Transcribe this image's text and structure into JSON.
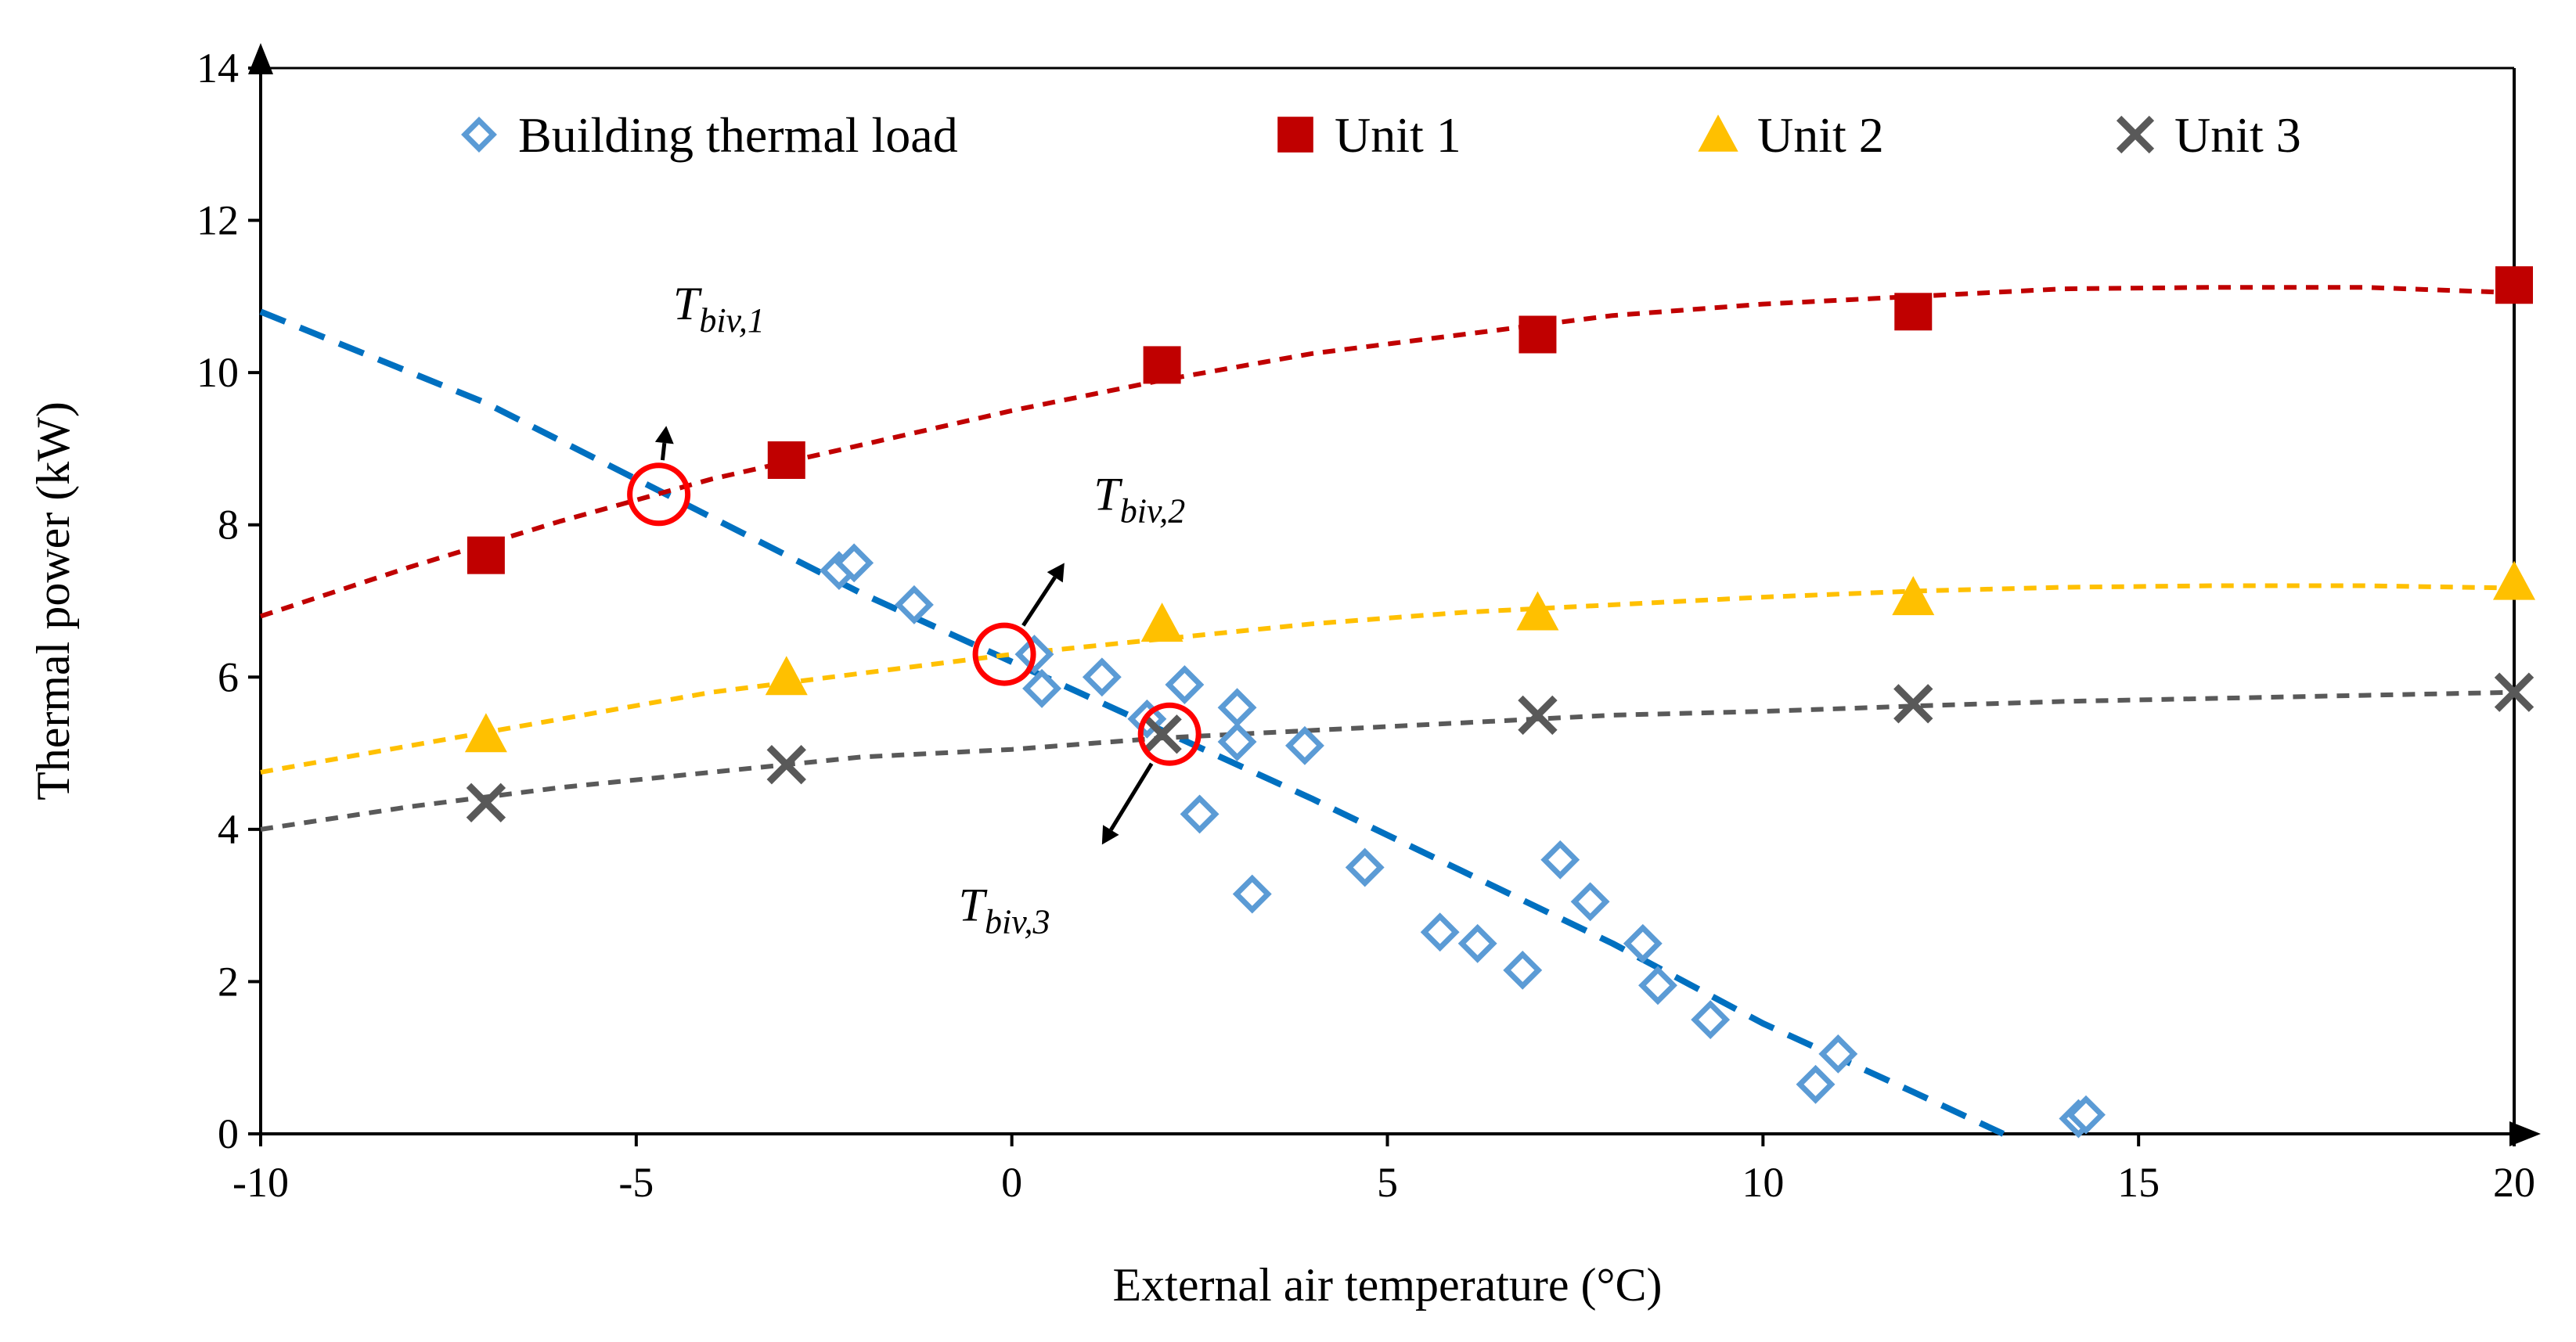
{
  "chart_data": {
    "type": "scatter",
    "xlabel": "External air temperature (°C)",
    "ylabel": "Thermal power (kW)",
    "xlim": [
      -10,
      20
    ],
    "ylim": [
      0,
      14
    ],
    "x_ticks": [
      "-10",
      "-5",
      "0",
      "5",
      "10",
      "15",
      "20"
    ],
    "y_ticks": [
      "0",
      "2",
      "4",
      "6",
      "8",
      "10",
      "12",
      "14"
    ],
    "grid": false,
    "legend_position": "top",
    "series": [
      {
        "name": "Building thermal load",
        "marker": "diamond-open",
        "color": "#5B9BD5",
        "points": [
          [
            -2.3,
            7.4
          ],
          [
            -2.1,
            7.5
          ],
          [
            -1.3,
            6.95
          ],
          [
            0.3,
            6.3
          ],
          [
            0.4,
            5.85
          ],
          [
            1.2,
            6.0
          ],
          [
            1.8,
            5.45
          ],
          [
            2.3,
            5.9
          ],
          [
            2.5,
            4.2
          ],
          [
            3.0,
            5.6
          ],
          [
            3.0,
            5.15
          ],
          [
            3.2,
            3.15
          ],
          [
            3.9,
            5.1
          ],
          [
            4.7,
            3.5
          ],
          [
            5.7,
            2.65
          ],
          [
            6.2,
            2.5
          ],
          [
            6.8,
            2.15
          ],
          [
            7.3,
            3.6
          ],
          [
            7.7,
            3.05
          ],
          [
            8.4,
            2.5
          ],
          [
            8.6,
            1.95
          ],
          [
            9.3,
            1.5
          ],
          [
            10.7,
            0.65
          ],
          [
            11.0,
            1.05
          ],
          [
            14.2,
            0.2
          ],
          [
            14.3,
            0.25
          ]
        ],
        "trend_color": "#0070C0",
        "trend_points": [
          [
            -10,
            10.8
          ],
          [
            -7,
            9.6
          ],
          [
            -5,
            8.6
          ],
          [
            -2,
            7.1
          ],
          [
            0,
            6.2
          ],
          [
            2,
            5.3
          ],
          [
            4,
            4.4
          ],
          [
            6,
            3.45
          ],
          [
            8,
            2.5
          ],
          [
            10,
            1.45
          ],
          [
            12,
            0.55
          ],
          [
            13.2,
            0.0
          ]
        ]
      },
      {
        "name": "Unit 1",
        "marker": "square",
        "color": "#C00000",
        "points": [
          [
            -7,
            7.6
          ],
          [
            -3,
            8.85
          ],
          [
            2,
            10.1
          ],
          [
            7,
            10.5
          ],
          [
            12,
            10.8
          ],
          [
            20,
            11.15
          ]
        ],
        "trend_points": [
          [
            -10,
            6.8
          ],
          [
            -8,
            7.45
          ],
          [
            -6,
            8.05
          ],
          [
            -4,
            8.6
          ],
          [
            -2,
            9.05
          ],
          [
            0,
            9.5
          ],
          [
            2,
            9.9
          ],
          [
            4,
            10.25
          ],
          [
            6,
            10.5
          ],
          [
            8,
            10.75
          ],
          [
            10,
            10.9
          ],
          [
            12,
            11.0
          ],
          [
            14,
            11.1
          ],
          [
            16,
            11.12
          ],
          [
            18,
            11.12
          ],
          [
            20,
            11.05
          ]
        ]
      },
      {
        "name": "Unit 2",
        "marker": "triangle",
        "color": "#FFC000",
        "points": [
          [
            -7,
            5.25
          ],
          [
            -3,
            6.0
          ],
          [
            2,
            6.7
          ],
          [
            7,
            6.85
          ],
          [
            12,
            7.05
          ],
          [
            20,
            7.25
          ]
        ],
        "trend_points": [
          [
            -10,
            4.75
          ],
          [
            -8,
            5.1
          ],
          [
            -6,
            5.45
          ],
          [
            -4,
            5.8
          ],
          [
            -2,
            6.05
          ],
          [
            0,
            6.3
          ],
          [
            2,
            6.5
          ],
          [
            4,
            6.7
          ],
          [
            6,
            6.85
          ],
          [
            8,
            6.95
          ],
          [
            10,
            7.05
          ],
          [
            12,
            7.13
          ],
          [
            14,
            7.18
          ],
          [
            16,
            7.2
          ],
          [
            18,
            7.2
          ],
          [
            20,
            7.17
          ]
        ]
      },
      {
        "name": "Unit 3",
        "marker": "x",
        "color": "#595959",
        "points": [
          [
            -7,
            4.35
          ],
          [
            -3,
            4.85
          ],
          [
            2,
            5.25
          ],
          [
            7,
            5.5
          ],
          [
            12,
            5.65
          ],
          [
            20,
            5.8
          ]
        ],
        "trend_points": [
          [
            -10,
            4.0
          ],
          [
            -8,
            4.3
          ],
          [
            -6,
            4.55
          ],
          [
            -4,
            4.75
          ],
          [
            -2,
            4.95
          ],
          [
            0,
            5.05
          ],
          [
            2,
            5.2
          ],
          [
            4,
            5.3
          ],
          [
            6,
            5.4
          ],
          [
            8,
            5.5
          ],
          [
            10,
            5.55
          ],
          [
            12,
            5.62
          ],
          [
            14,
            5.68
          ],
          [
            16,
            5.72
          ],
          [
            18,
            5.76
          ],
          [
            20,
            5.8
          ]
        ]
      }
    ],
    "annotations": [
      {
        "main": "T",
        "sub": "biv,1",
        "point": [
          -4.7,
          8.4
        ],
        "label_at": [
          -3.9,
          10.7
        ],
        "arrow_to": [
          -4.6,
          9.3
        ]
      },
      {
        "main": "T",
        "sub": "biv,2",
        "point": [
          -0.1,
          6.3
        ],
        "label_at": [
          1.7,
          8.2
        ],
        "arrow_to": [
          0.7,
          7.5
        ]
      },
      {
        "main": "T",
        "sub": "biv,3",
        "point": [
          2.1,
          5.25
        ],
        "label_at": [
          -0.1,
          2.8
        ],
        "arrow_to": [
          1.2,
          3.8
        ]
      }
    ]
  }
}
